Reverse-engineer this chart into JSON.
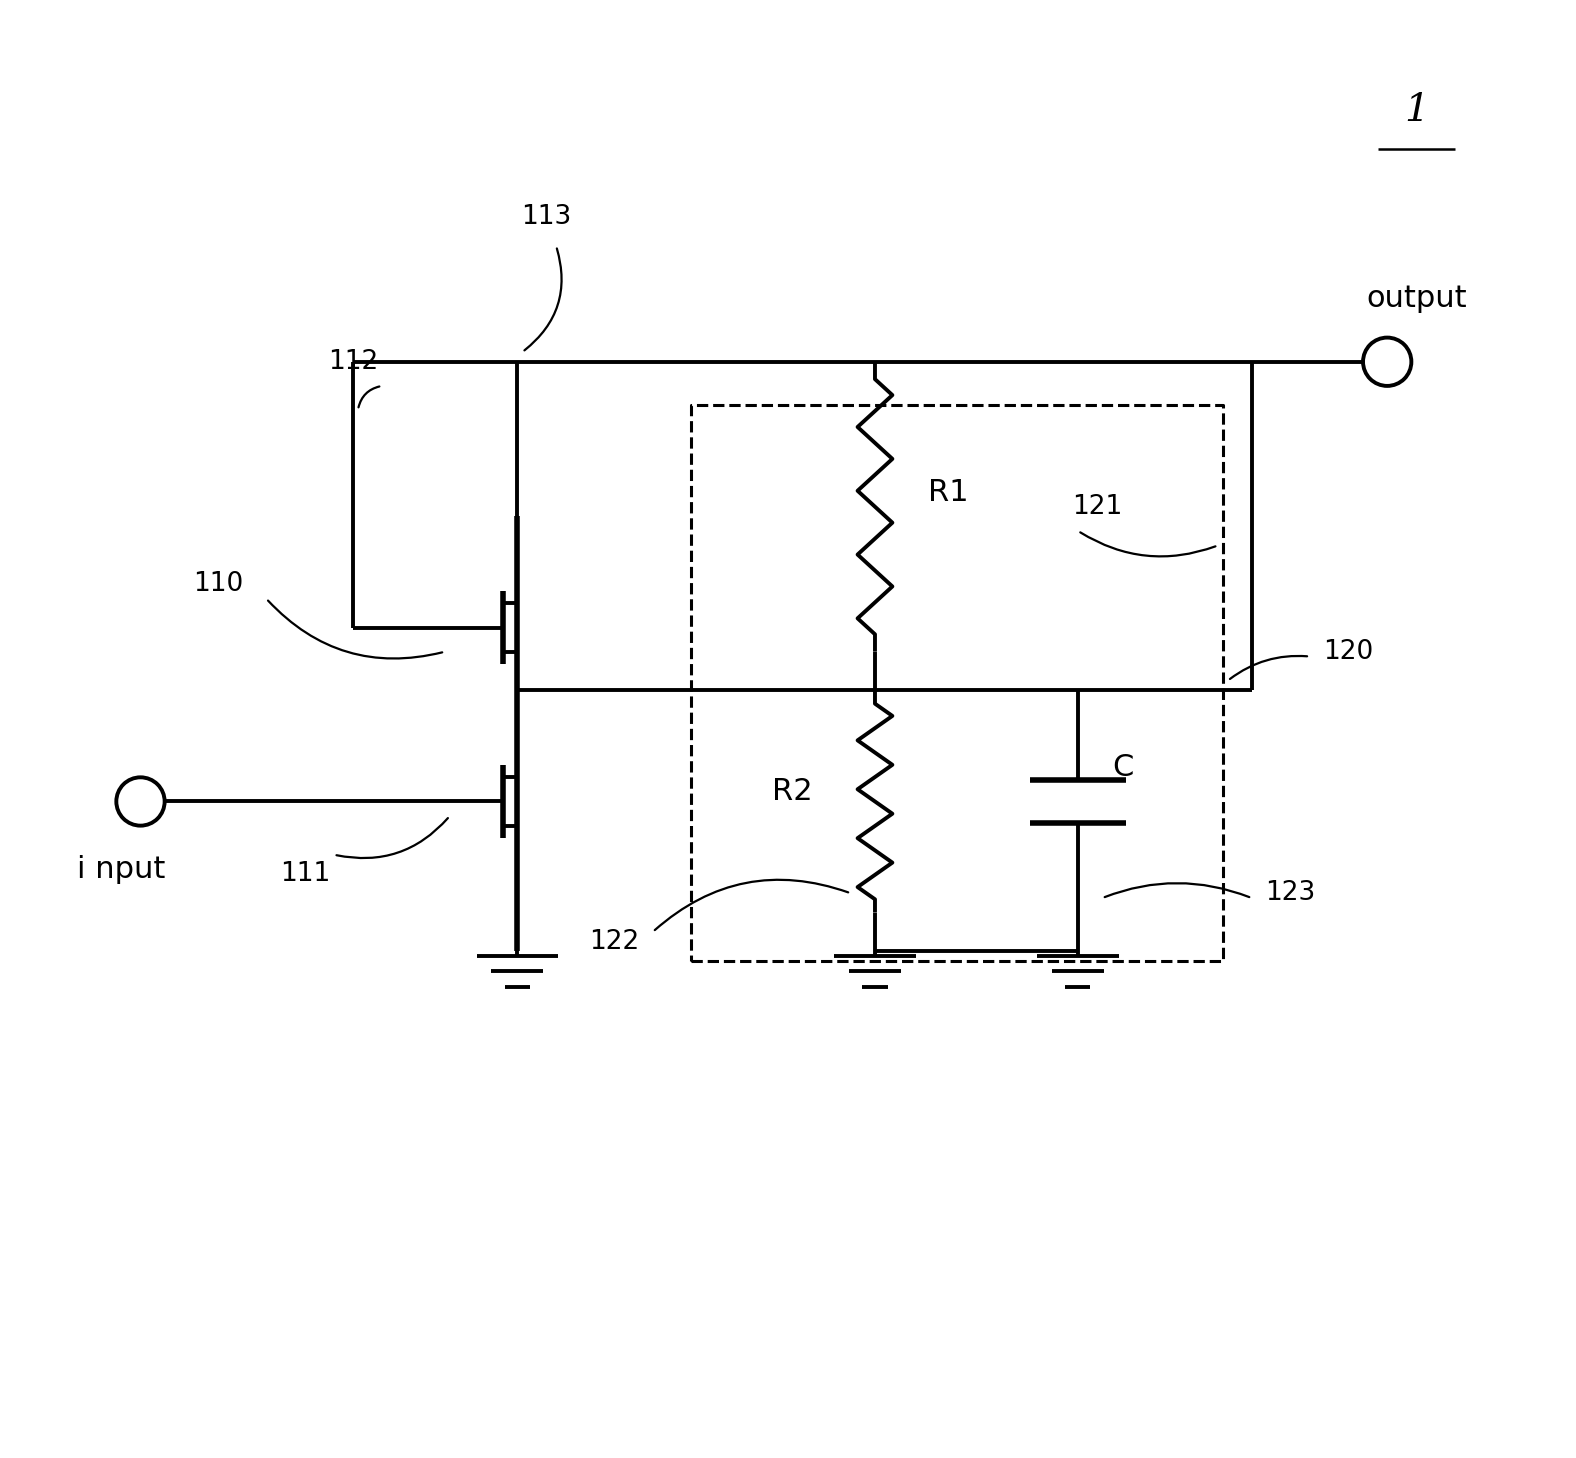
{
  "bg_color": "#ffffff",
  "lw": 2.8,
  "tlw": 4.0,
  "fig_width": 15.76,
  "fig_height": 14.58,
  "label_1": "1",
  "label_113": "113",
  "label_112": "112",
  "label_110": "110",
  "label_111": "111",
  "label_121": "121",
  "label_120": "120",
  "label_122": "122",
  "label_123": "123",
  "label_R1": "R1",
  "label_R2": "R2",
  "label_C": "C",
  "label_input": "i nput",
  "label_output": "output",
  "fs_large": 22,
  "fs_label": 19,
  "fs_ref": 28
}
